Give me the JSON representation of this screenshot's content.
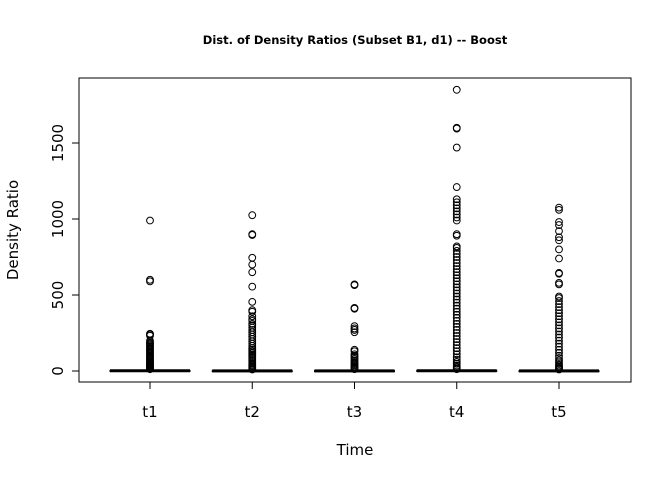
{
  "chart_data": {
    "type": "boxplot",
    "title": "Dist. of Density Ratios (Subset B1, d1) -- Boost",
    "xlabel": "Time",
    "ylabel": "Density Ratio",
    "categories": [
      "t1",
      "t2",
      "t3",
      "t4",
      "t5"
    ],
    "ylim": [
      -70,
      1920
    ],
    "yticks": [
      0,
      500,
      1000,
      1500
    ],
    "grid": false,
    "legend": "none",
    "boxes": [
      {
        "category": "t1",
        "min": 0,
        "q1": 1,
        "median": 2,
        "q3": 4,
        "max": 8,
        "outliers": [
          990,
          600,
          590,
          245,
          240,
          232,
          200,
          190,
          182,
          175,
          168,
          160,
          152,
          145,
          138,
          130,
          122,
          115,
          108,
          100,
          93,
          86,
          80,
          73,
          66,
          60,
          54,
          48,
          43,
          38,
          33,
          28,
          24,
          20,
          16,
          12
        ]
      },
      {
        "category": "t2",
        "min": 0,
        "q1": 0.5,
        "median": 1,
        "q3": 2,
        "max": 5,
        "outliers": [
          1025,
          900,
          895,
          745,
          700,
          650,
          555,
          455,
          400,
          390,
          360,
          340,
          330,
          310,
          300,
          285,
          270,
          255,
          240,
          225,
          210,
          195,
          180,
          165,
          150,
          140,
          130,
          120,
          110,
          100,
          90,
          80,
          70,
          60,
          50,
          42,
          35,
          28,
          22,
          16,
          10
        ]
      },
      {
        "category": "t3",
        "min": 0,
        "q1": 0.5,
        "median": 1,
        "q3": 2,
        "max": 5,
        "outliers": [
          570,
          565,
          415,
          410,
          295,
          280,
          270,
          255,
          140,
          130,
          110,
          100,
          90,
          80,
          70,
          60,
          52,
          45,
          38,
          30,
          24,
          18,
          12
        ]
      },
      {
        "category": "t4",
        "min": 0,
        "q1": 1,
        "median": 2,
        "q3": 4,
        "max": 10,
        "outliers": [
          1850,
          1600,
          1595,
          1470,
          1210,
          1130,
          1110,
          1090,
          1070,
          1050,
          1030,
          1010,
          990,
          900,
          890,
          820,
          810,
          790,
          770,
          750,
          730,
          710,
          690,
          670,
          650,
          630,
          610,
          590,
          570,
          550,
          530,
          510,
          490,
          470,
          450,
          430,
          410,
          390,
          370,
          350,
          330,
          310,
          290,
          270,
          250,
          230,
          210,
          190,
          170,
          150,
          130,
          110,
          90,
          75,
          60,
          48,
          36,
          26,
          18,
          12
        ]
      },
      {
        "category": "t5",
        "min": 0,
        "q1": 0.5,
        "median": 1,
        "q3": 2,
        "max": 5,
        "outliers": [
          1075,
          1060,
          980,
          960,
          920,
          880,
          860,
          800,
          740,
          645,
          640,
          580,
          570,
          490,
          480,
          460,
          440,
          420,
          400,
          380,
          360,
          340,
          320,
          300,
          280,
          260,
          240,
          220,
          200,
          180,
          160,
          140,
          120,
          100,
          85,
          70,
          58,
          46,
          36,
          28,
          20,
          14,
          10
        ]
      }
    ]
  }
}
